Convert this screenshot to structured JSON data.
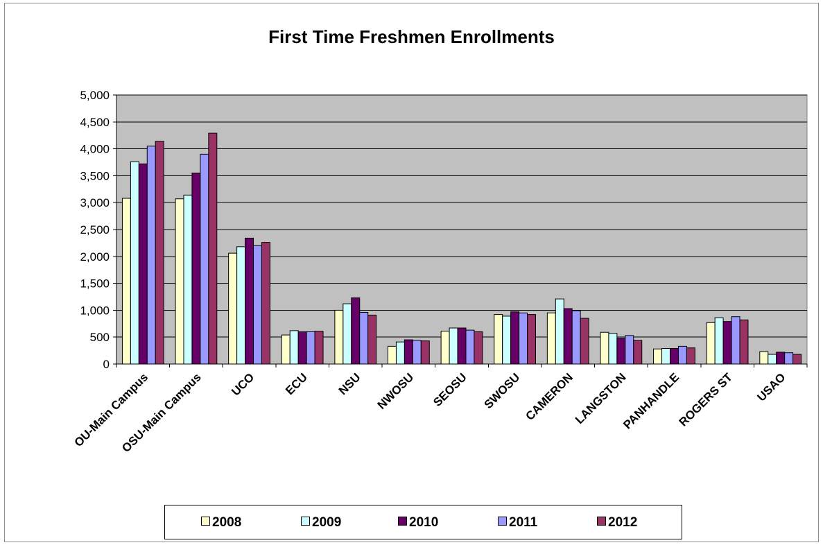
{
  "chart_data": {
    "type": "bar",
    "title": "First Time Freshmen Enrollments",
    "xlabel": "",
    "ylabel": "",
    "ylim": [
      0,
      5000
    ],
    "yticks": [
      "5,000",
      "4,500",
      "4,000",
      "3,500",
      "3,000",
      "2,500",
      "2,000",
      "1,500",
      "1,000",
      "500",
      "0"
    ],
    "ytick_values": [
      5000,
      4500,
      4000,
      3500,
      3000,
      2500,
      2000,
      1500,
      1000,
      500,
      0
    ],
    "grid": true,
    "plot_background": "#c0c0c0",
    "legend_position": "bottom",
    "categories": [
      "OU-Main Campus",
      "OSU-Main Campus",
      "UCO",
      "ECU",
      "NSU",
      "NWOSU",
      "SEOSU",
      "SWOSU",
      "CAMERON",
      "LANGSTON",
      "PANHANDLE",
      "ROGERS ST",
      "USAO"
    ],
    "series": [
      {
        "name": "2008",
        "color": "#ffffcc",
        "values": [
          3080,
          3070,
          2060,
          540,
          1000,
          330,
          610,
          920,
          950,
          590,
          280,
          770,
          230
        ]
      },
      {
        "name": "2009",
        "color": "#ccffff",
        "values": [
          3760,
          3140,
          2180,
          620,
          1120,
          410,
          670,
          890,
          1210,
          570,
          290,
          860,
          180
        ]
      },
      {
        "name": "2010",
        "color": "#660066",
        "values": [
          3720,
          3550,
          2340,
          600,
          1230,
          450,
          670,
          970,
          1030,
          480,
          290,
          790,
          220
        ]
      },
      {
        "name": "2011",
        "color": "#9999ff",
        "values": [
          4050,
          3900,
          2200,
          600,
          960,
          440,
          630,
          950,
          990,
          530,
          330,
          880,
          210
        ]
      },
      {
        "name": "2012",
        "color": "#993366",
        "values": [
          4140,
          4290,
          2260,
          610,
          910,
          430,
          600,
          920,
          850,
          440,
          300,
          820,
          180
        ]
      }
    ]
  }
}
